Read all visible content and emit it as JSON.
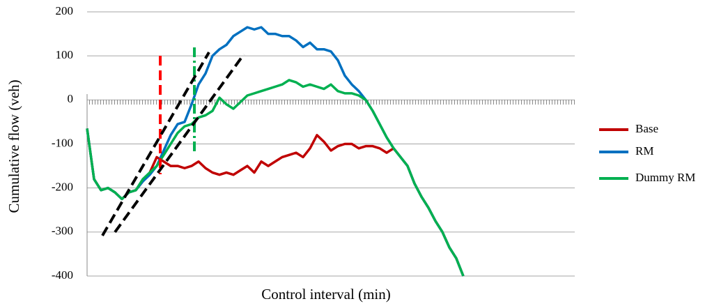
{
  "chart_data": {
    "type": "line",
    "xlabel": "Control interval (min)",
    "ylabel": "Cumulative flow (veh)",
    "ylim": [
      -400,
      200
    ],
    "yticks": [
      -400,
      -300,
      -200,
      -100,
      0,
      100,
      200
    ],
    "grid": true,
    "legend": "right",
    "series": [
      {
        "name": "Base",
        "color": "#c00000",
        "values": [
          -65,
          -180,
          -205,
          -200,
          -210,
          -225,
          -210,
          -205,
          -185,
          -165,
          -130,
          -140,
          -150,
          -150,
          -155,
          -150,
          -140,
          -155,
          -165,
          -170,
          -165,
          -170,
          -160,
          -150,
          -165,
          -140,
          -150,
          -140,
          -130,
          -125,
          -120,
          -130,
          -110,
          -80,
          -95,
          -115,
          -105,
          -100,
          -100,
          -110,
          -105,
          -105,
          -110,
          -120,
          -110,
          -130,
          -150,
          -190,
          -220,
          -245,
          -275,
          -300,
          -335,
          -360,
          -400,
          null,
          null,
          null,
          null,
          null,
          null,
          null,
          null,
          null,
          null,
          null,
          null,
          null,
          null,
          null,
          null
        ]
      },
      {
        "name": "RM",
        "color": "#0070c0",
        "values": [
          -65,
          -180,
          -205,
          -200,
          -210,
          -225,
          -210,
          -205,
          -185,
          -170,
          -150,
          -115,
          -80,
          -55,
          -50,
          -10,
          35,
          60,
          100,
          115,
          125,
          145,
          155,
          165,
          160,
          165,
          150,
          150,
          145,
          145,
          135,
          120,
          130,
          115,
          115,
          110,
          90,
          55,
          35,
          20,
          0,
          -25,
          -55,
          -85,
          -110,
          -130,
          -150,
          -190,
          -220,
          -245,
          -275,
          -300,
          -335,
          -360,
          -400,
          null,
          null,
          null,
          null,
          null,
          null,
          null,
          null,
          null,
          null,
          null,
          null,
          null,
          null,
          null,
          null
        ]
      },
      {
        "name": "Dummy RM",
        "color": "#00b050",
        "values": [
          -65,
          -180,
          -205,
          -200,
          -210,
          -225,
          -210,
          -205,
          -180,
          -165,
          -150,
          -125,
          -100,
          -75,
          -60,
          -55,
          -40,
          -35,
          -25,
          5,
          -10,
          -20,
          -5,
          10,
          15,
          20,
          25,
          30,
          35,
          45,
          40,
          30,
          35,
          30,
          25,
          35,
          20,
          15,
          15,
          10,
          0,
          -25,
          -55,
          -85,
          -110,
          -130,
          -150,
          -190,
          -220,
          -245,
          -275,
          -300,
          -335,
          -360,
          -400,
          null,
          null,
          null,
          null,
          null,
          null,
          null,
          null,
          null,
          null,
          null,
          null,
          null,
          null,
          null,
          null
        ]
      }
    ]
  }
}
